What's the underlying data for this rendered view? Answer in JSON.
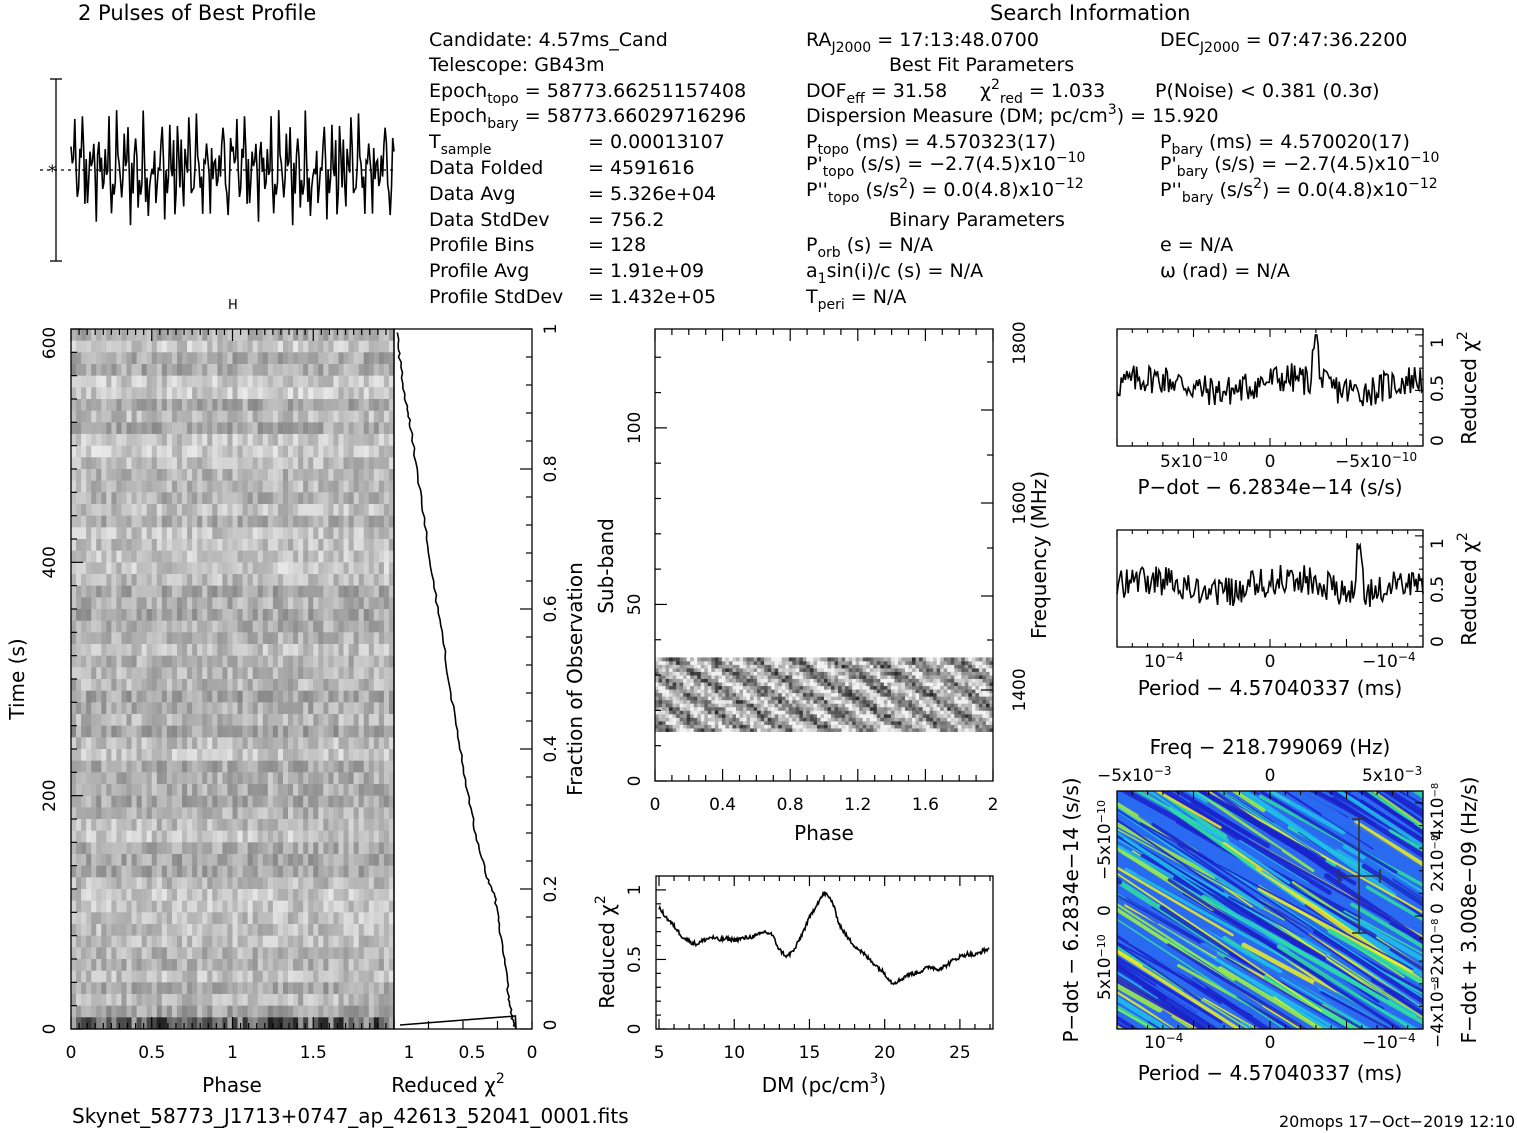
{
  "title_profile": "2 Pulses of Best Profile",
  "title_search": "Search Information",
  "info": {
    "candidate": "Candidate:  4.57ms_Cand",
    "telescope": "Telescope:  GB43m",
    "epoch_topo_lbl": "Epoch",
    "epoch_topo_sub": "topo",
    "epoch_topo_val": " = 58773.66251157408",
    "epoch_bary_lbl": "Epoch",
    "epoch_bary_sub": "bary",
    "epoch_bary_val": " = 58773.66029716296",
    "tsample_lbl": "T",
    "tsample_sub": "sample",
    "tsample_val": "=   0.00013107",
    "data_folded_lbl": "Data Folded",
    "data_folded_val": "=   4591616",
    "data_avg_lbl": "Data Avg",
    "data_avg_val": "=   5.326e+04",
    "data_std_lbl": "Data StdDev",
    "data_std_val": "=   756.2",
    "profile_bins_lbl": "Profile Bins",
    "profile_bins_val": "=   128",
    "profile_avg_lbl": "Profile Avg",
    "profile_avg_val": "=   1.91e+09",
    "profile_std_lbl": "Profile StdDev",
    "profile_std_val": "=   1.432e+05"
  },
  "search": {
    "ra_lbl": "RA",
    "ra_sub": "J2000",
    "ra_val": " = 17:13:48.0700",
    "dec_lbl": "DEC",
    "dec_sub": "J2000",
    "dec_val": " = 07:47:36.2200",
    "best_fit": "Best Fit Parameters",
    "dof_lbl": "DOF",
    "dof_sub": "eff",
    "dof_val": " = 31.58",
    "chi_lbl": "χ",
    "chi_sup": "2",
    "chi_sub": "red",
    "chi_val": " = 1.033",
    "pnoise": "P(Noise) < 0.381   (0.3σ)",
    "dm_lbl": "Dispersion Measure (DM; pc/cm",
    "dm_sup": "3",
    "dm_val": ") = 15.920",
    "ptopo_lbl": "P",
    "ptopo_sub": "topo",
    "ptopo_val": " (ms) =  4.570323(17)",
    "pbary_lbl": "P",
    "pbary_sub": "bary",
    "pbary_val": " (ms) =  4.570020(17)",
    "pdtopo_lbl": "P'",
    "pdtopo_sub": "topo",
    "pdtopo_val": " (s/s) = −2.7(4.5)x10",
    "pdtopo_exp": "−10",
    "pdbary_lbl": "P'",
    "pdbary_sub": "bary",
    "pdbary_val": " (s/s) = −2.7(4.5)x10",
    "pdbary_exp": "−10",
    "pddtopo_lbl": "P''",
    "pddtopo_sub": "topo",
    "pddtopo_val": " (s/s",
    "pddtopo_sup": "2",
    "pddtopo_val2": ") = 0.0(4.8)x10",
    "pddtopo_exp": "−12",
    "pddbary_lbl": "P''",
    "pddbary_sub": "bary",
    "pddbary_val": " (s/s",
    "pddbary_sup": "2",
    "pddbary_val2": ") = 0.0(4.8)x10",
    "pddbary_exp": "−12",
    "binary": "Binary Parameters",
    "porb_lbl": "P",
    "porb_sub": "orb",
    "porb_val": " (s) = N/A",
    "e_val": "e = N/A",
    "a1_lbl": "a",
    "a1_sub": "1",
    "a1_val": "sin(i)/c (s) = N/A",
    "omega_val": "ω (rad) = N/A",
    "tperi_lbl": "T",
    "tperi_sub": "peri",
    "tperi_val": " = N/A"
  },
  "footer": {
    "filename": "Skynet_58773_J1713+0747_ap_42613_52041_0001.fits",
    "stamp": "20mops 17−Oct−2019 12:10"
  },
  "chart_data": [
    {
      "id": "profile",
      "type": "line",
      "title": "2 Pulses of Best Profile",
      "xlabel": "",
      "ylabel": "",
      "bins": 256,
      "note_values": "two identical copies of a 128-bin profile, shape approximated"
    },
    {
      "id": "time_phase",
      "type": "heatmap",
      "xlabel": "Phase",
      "ylabel": "Time (s)",
      "xlim": [
        0,
        2
      ],
      "ylim": [
        0,
        600
      ],
      "xticks": [
        "0",
        "0.5",
        "1",
        "1.5"
      ],
      "yticks": [
        "0",
        "200",
        "400",
        "600"
      ]
    },
    {
      "id": "chi_vs_time",
      "type": "line",
      "xlabel": "Reduced χ",
      "xlabel_sup": "2",
      "ylabel": "Fraction of Observation",
      "xticks": [
        "1",
        "0.5",
        "0"
      ],
      "yticks": [
        "0",
        "0.2",
        "0.4",
        "0.6",
        "0.8",
        "1"
      ],
      "points": [
        [
          0.12,
          0.0
        ],
        [
          0.15,
          0.02
        ],
        [
          0.17,
          0.05
        ],
        [
          0.2,
          0.1
        ],
        [
          0.24,
          0.15
        ],
        [
          0.27,
          0.19
        ],
        [
          0.33,
          0.22
        ],
        [
          0.4,
          0.27
        ],
        [
          0.46,
          0.33
        ],
        [
          0.52,
          0.4
        ],
        [
          0.58,
          0.47
        ],
        [
          0.64,
          0.55
        ],
        [
          0.7,
          0.62
        ],
        [
          0.76,
          0.7
        ],
        [
          0.82,
          0.78
        ],
        [
          0.88,
          0.86
        ],
        [
          0.92,
          0.9
        ],
        [
          0.96,
          0.96
        ],
        [
          0.98,
          1.0
        ]
      ]
    },
    {
      "id": "subband_phase",
      "type": "heatmap",
      "xlabel": "Phase",
      "ylabel": "Sub-band",
      "ylabel2": "Frequency (MHz)",
      "xlim": [
        0,
        2
      ],
      "ylim": [
        0,
        128
      ],
      "xticks": [
        "0",
        "0.4",
        "0.8",
        "1.2",
        "1.6",
        "2"
      ],
      "yticks": [
        "0",
        "50",
        "100"
      ],
      "y2ticks": [
        "1400",
        "1600",
        "1800"
      ],
      "filled_band": [
        14,
        35
      ]
    },
    {
      "id": "dm_curve",
      "type": "line",
      "xlabel": "DM (pc/cm",
      "xlabel_sup": "3",
      "xlabel_end": ")",
      "ylabel": "Reduced χ",
      "ylabel_sup": "2",
      "xlim": [
        4.8,
        27.2
      ],
      "ylim": [
        0,
        1.1
      ],
      "xticks": [
        "5",
        "10",
        "15",
        "20",
        "25"
      ],
      "yticks": [
        "0",
        "0.5",
        "1"
      ],
      "points": [
        [
          5,
          0.87
        ],
        [
          5.5,
          0.8
        ],
        [
          6,
          0.74
        ],
        [
          6.5,
          0.67
        ],
        [
          7,
          0.63
        ],
        [
          7.5,
          0.61
        ],
        [
          8,
          0.64
        ],
        [
          8.5,
          0.66
        ],
        [
          9,
          0.64
        ],
        [
          9.5,
          0.65
        ],
        [
          10,
          0.64
        ],
        [
          10.5,
          0.65
        ],
        [
          11,
          0.66
        ],
        [
          11.5,
          0.67
        ],
        [
          12,
          0.7
        ],
        [
          12.5,
          0.68
        ],
        [
          13,
          0.57
        ],
        [
          13.5,
          0.52
        ],
        [
          14,
          0.57
        ],
        [
          14.5,
          0.68
        ],
        [
          15,
          0.8
        ],
        [
          15.5,
          0.9
        ],
        [
          16,
          0.98
        ],
        [
          16.5,
          0.92
        ],
        [
          17,
          0.75
        ],
        [
          17.5,
          0.66
        ],
        [
          18,
          0.6
        ],
        [
          18.5,
          0.55
        ],
        [
          19,
          0.5
        ],
        [
          19.5,
          0.45
        ],
        [
          20,
          0.4
        ],
        [
          20.5,
          0.33
        ],
        [
          21,
          0.35
        ],
        [
          21.5,
          0.39
        ],
        [
          22,
          0.4
        ],
        [
          22.5,
          0.42
        ],
        [
          23,
          0.45
        ],
        [
          23.5,
          0.43
        ],
        [
          24,
          0.45
        ],
        [
          24.5,
          0.49
        ],
        [
          25,
          0.52
        ],
        [
          25.5,
          0.54
        ],
        [
          26,
          0.53
        ],
        [
          26.5,
          0.56
        ],
        [
          27,
          0.58
        ]
      ]
    },
    {
      "id": "pdot_curve",
      "type": "line",
      "xlabel": "P−dot − 6.2834e−14 (s/s)",
      "ylabel": "Reduced χ",
      "ylabel_sup": "2",
      "xticks": [
        "5x10",
        "0",
        "−5x10"
      ],
      "xtick_exp": "−10",
      "yticks": [
        "0",
        "0.5",
        "1"
      ]
    },
    {
      "id": "period_curve",
      "type": "line",
      "xlabel": "Period − 4.57040337 (ms)",
      "ylabel": "Reduced χ",
      "ylabel_sup": "2",
      "xticks": [
        "10",
        "0",
        "−10"
      ],
      "xtick_exp": "−4",
      "yticks": [
        "0",
        "0.5",
        "1"
      ]
    },
    {
      "id": "p_pdot_plane",
      "type": "heatmap",
      "title": "Freq − 218.799069 (Hz)",
      "xlabel": "Period − 4.57040337 (ms)",
      "ylabel": "P−dot − 6.2834e−14 (s/s)",
      "ylabel2": "F−dot + 3.008e−09 (Hz/s)",
      "top_ticks": [
        "−5x10",
        "0",
        "5x10"
      ],
      "top_exp": "−3",
      "bottom_ticks": [
        "10",
        "−10"
      ],
      "bottom_exp": "−4",
      "left_ticks": [
        "−5x10",
        "0",
        "5x10"
      ],
      "left_exp": "−10",
      "right_ticks": [
        "4x10",
        "2x10",
        "0",
        "−2x10",
        "−4x10"
      ],
      "right_exp": [
        "−8",
        "−8",
        "",
        "−8",
        "−8"
      ],
      "colors": [
        "#1a22cc",
        "#2a6af0",
        "#20c0e8",
        "#30e0a0",
        "#a0f040",
        "#f0f020"
      ]
    }
  ]
}
